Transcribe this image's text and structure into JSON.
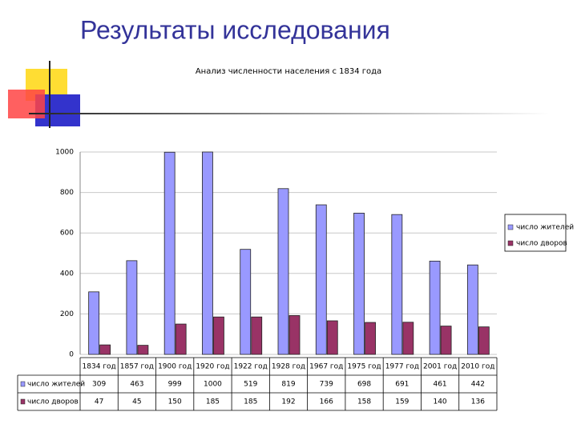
{
  "title": "Результаты исследования",
  "chart_data": {
    "type": "bar",
    "title": "Анализ численности населения с 1834 года",
    "categories": [
      "1834 год",
      "1857 год",
      "1900 год",
      "1920 год",
      "1922 год",
      "1928 год",
      "1967 год",
      "1975 год",
      "1977 год",
      "2001 год",
      "2010 год"
    ],
    "series": [
      {
        "name": "число жителей",
        "color": "#9999ff",
        "values": [
          309,
          463,
          999,
          1000,
          519,
          819,
          739,
          698,
          691,
          461,
          442
        ]
      },
      {
        "name": "число дворов",
        "color": "#993366",
        "values": [
          47,
          45,
          150,
          185,
          185,
          192,
          166,
          158,
          159,
          140,
          136
        ]
      }
    ],
    "ylim": [
      0,
      1000
    ],
    "yticks": [
      0,
      200,
      400,
      600,
      800,
      1000
    ],
    "grid": true,
    "legend": "right",
    "data_table": true
  }
}
